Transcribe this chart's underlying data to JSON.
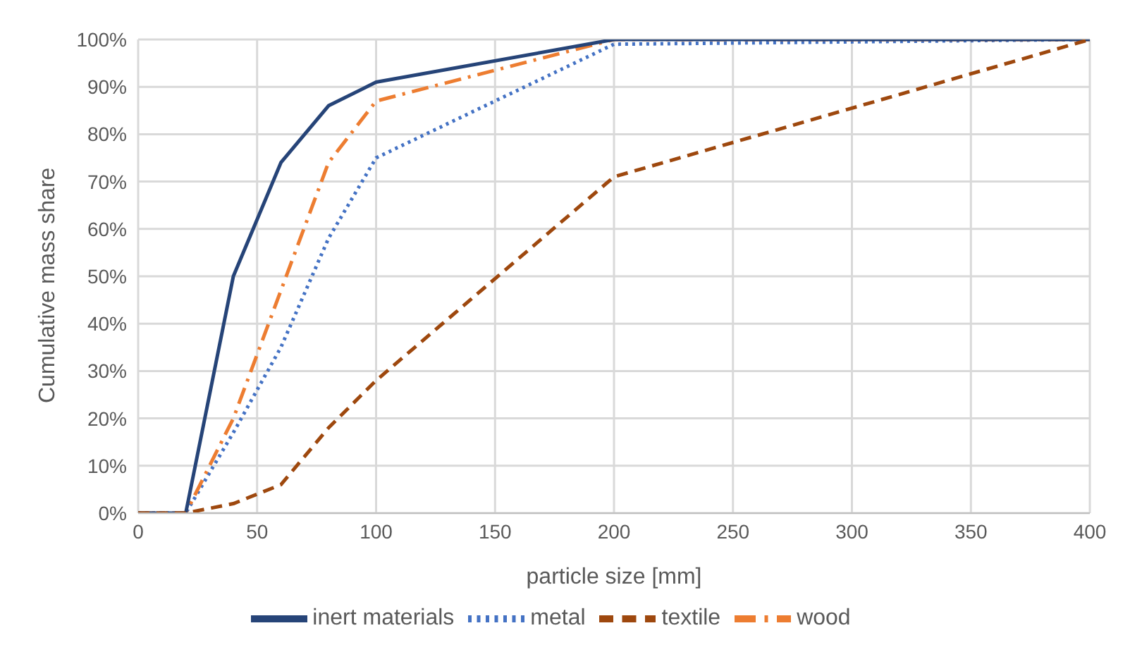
{
  "chart_data": {
    "type": "line",
    "xlabel": "particle size [mm]",
    "ylabel": "Cumulative mass share",
    "x": [
      0,
      20,
      40,
      60,
      80,
      100,
      200,
      400
    ],
    "series": [
      {
        "name": "metal",
        "color": "#4472c4",
        "line_style": "dotted",
        "values": [
          0,
          0,
          17,
          35,
          58,
          75,
          99,
          100
        ]
      },
      {
        "name": "wood",
        "color": "#ed7d31",
        "line_style": "dashdot",
        "values": [
          0,
          0,
          20,
          47,
          74,
          87,
          100,
          100
        ]
      },
      {
        "name": "inert materials",
        "color": "#264478",
        "line_style": "solid",
        "values": [
          0,
          0,
          50,
          74,
          86,
          91,
          100,
          100
        ]
      },
      {
        "name": "textile",
        "color": "#9e480e",
        "line_style": "dashed",
        "values": [
          0,
          0,
          2,
          6,
          18,
          28,
          71,
          100
        ]
      }
    ],
    "xlim": [
      0,
      400
    ],
    "xticks": [
      0,
      50,
      100,
      150,
      200,
      250,
      300,
      350,
      400
    ],
    "ylim": [
      0,
      100
    ],
    "yticks": [
      {
        "value": 0,
        "label": "0%"
      },
      {
        "value": 10,
        "label": "10%"
      },
      {
        "value": 20,
        "label": "20%"
      },
      {
        "value": 30,
        "label": "30%"
      },
      {
        "value": 40,
        "label": "40%"
      },
      {
        "value": 50,
        "label": "50%"
      },
      {
        "value": 60,
        "label": "60%"
      },
      {
        "value": 70,
        "label": "70%"
      },
      {
        "value": 80,
        "label": "80%"
      },
      {
        "value": 90,
        "label": "90%"
      },
      {
        "value": 100,
        "label": "100%"
      }
    ],
    "grid": true,
    "legend": "bottom",
    "marker": "none"
  }
}
